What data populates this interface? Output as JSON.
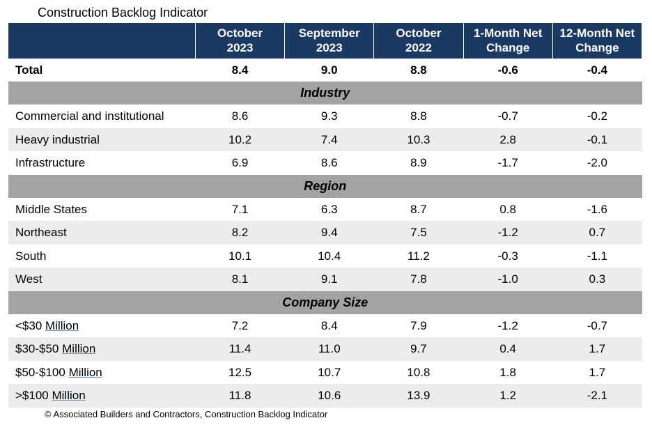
{
  "title": "Construction Backlog Indicator",
  "footer": "© Associated Builders and Contractors, Construction Backlog Indicator",
  "colors": {
    "header_bg": "#1b3a63",
    "header_fg": "#ffffff",
    "section_bg": "#a3a3a3",
    "row_alt_bg": "#ececec",
    "row_bg": "#ffffff",
    "underline": "#7a94b5"
  },
  "columns": [
    "",
    "October 2023",
    "September 2023",
    "October 2022",
    "1-Month Net Change",
    "12-Month Net Change"
  ],
  "total": {
    "label": "Total",
    "values": [
      "8.4",
      "9.0",
      "8.8",
      "-0.6",
      "-0.4"
    ]
  },
  "sections": [
    {
      "title": "Industry",
      "rows": [
        {
          "label": "Commercial and institutional",
          "values": [
            "8.6",
            "9.3",
            "8.8",
            "-0.7",
            "-0.2"
          ]
        },
        {
          "label": "Heavy industrial",
          "values": [
            "10.2",
            "7.4",
            "10.3",
            "2.8",
            "-0.1"
          ]
        },
        {
          "label": "Infrastructure",
          "values": [
            "6.9",
            "8.6",
            "8.9",
            "-1.7",
            "-2.0"
          ]
        }
      ]
    },
    {
      "title": "Region",
      "rows": [
        {
          "label": "Middle States",
          "values": [
            "7.1",
            "6.3",
            "8.7",
            "0.8",
            "-1.6"
          ]
        },
        {
          "label": "Northeast",
          "values": [
            "8.2",
            "9.4",
            "7.5",
            "-1.2",
            "0.7"
          ]
        },
        {
          "label": "South",
          "values": [
            "10.1",
            "10.4",
            "11.2",
            "-0.3",
            "-1.1"
          ]
        },
        {
          "label": "West",
          "values": [
            "8.1",
            "9.1",
            "7.8",
            "-1.0",
            "0.3"
          ]
        }
      ]
    },
    {
      "title": "Company Size",
      "rows": [
        {
          "label_html": "<$30 <span class=\"underline\">Million</span>",
          "values": [
            "7.2",
            "8.4",
            "7.9",
            "-1.2",
            "-0.7"
          ]
        },
        {
          "label_html": "$30-$50 <span class=\"underline\">Million</span>",
          "values": [
            "11.4",
            "11.0",
            "9.7",
            "0.4",
            "1.7"
          ]
        },
        {
          "label_html": "$50-$100 <span class=\"underline\">Million</span>",
          "values": [
            "12.5",
            "10.7",
            "10.8",
            "1.8",
            "1.7"
          ]
        },
        {
          "label_html": ">$100 <span class=\"underline\">Million</span>",
          "values": [
            "11.8",
            "10.6",
            "13.9",
            "1.2",
            "-2.1"
          ]
        }
      ]
    }
  ]
}
